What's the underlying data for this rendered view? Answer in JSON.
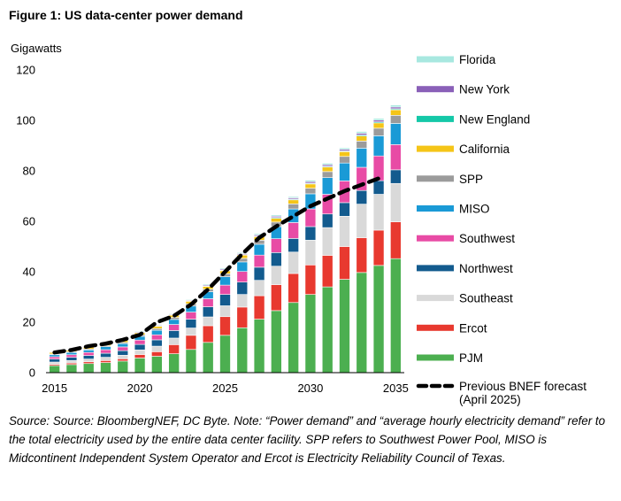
{
  "figure": {
    "title": "Figure 1:  US data-center power demand",
    "source_note": "Source: Source: BloombergNEF, DC Byte. Note: “Power demand” and “average hourly electricity demand” refer to the total electricity used by the entire data center facility. SPP refers to Southwest Power Pool, MISO is Midcontinent Independent System Operator and Ercot is Electricity Reliability Council of Texas."
  },
  "chart_data": {
    "type": "bar",
    "stacked": true,
    "ylabel": "Gigawatts",
    "ylim": [
      0,
      120
    ],
    "y_ticks": [
      0,
      20,
      40,
      60,
      80,
      100,
      120
    ],
    "x_ticks": [
      2015,
      2020,
      2025,
      2030,
      2035
    ],
    "categories": [
      2015,
      2016,
      2017,
      2018,
      2019,
      2020,
      2021,
      2022,
      2023,
      2024,
      2025,
      2026,
      2027,
      2028,
      2029,
      2030,
      2031,
      2032,
      2033,
      2034,
      2035
    ],
    "series": [
      {
        "name": "PJM",
        "color": "#4CAF50",
        "values": [
          2.8,
          3.2,
          3.6,
          4.0,
          4.6,
          5.8,
          6.5,
          7.5,
          9.2,
          12.0,
          14.8,
          17.8,
          21.2,
          24.6,
          27.8,
          31.0,
          34.0,
          37.0,
          39.7,
          42.5,
          45.2
        ]
      },
      {
        "name": "Ercot",
        "color": "#E8392F",
        "values": [
          0.5,
          0.6,
          0.7,
          0.8,
          0.9,
          1.4,
          1.8,
          3.6,
          5.6,
          6.6,
          7.4,
          8.2,
          9.3,
          10.3,
          11.5,
          11.7,
          12.5,
          13.0,
          13.8,
          14.0,
          14.6
        ]
      },
      {
        "name": "Southeast",
        "color": "#D9D9D9",
        "values": [
          0.9,
          1.0,
          1.1,
          1.3,
          1.4,
          1.8,
          2.2,
          2.6,
          2.9,
          3.5,
          4.3,
          5.0,
          6.1,
          7.3,
          8.5,
          9.8,
          11.0,
          12.0,
          13.3,
          14.2,
          15.2
        ]
      },
      {
        "name": "Northwest",
        "color": "#135B8E",
        "values": [
          1.2,
          1.3,
          1.4,
          1.6,
          1.8,
          2.2,
          2.5,
          3.0,
          3.5,
          4.0,
          4.5,
          4.9,
          5.2,
          5.4,
          5.4,
          5.4,
          5.4,
          5.4,
          5.4,
          5.4,
          5.4
        ]
      },
      {
        "name": "Southwest",
        "color": "#E84BA5",
        "values": [
          0.9,
          1.0,
          1.2,
          1.4,
          1.5,
          1.7,
          2.0,
          2.4,
          2.8,
          3.2,
          3.7,
          4.2,
          4.8,
          5.5,
          6.3,
          7.0,
          7.8,
          8.6,
          9.2,
          9.8,
          10.0
        ]
      },
      {
        "name": "MISO",
        "color": "#1A9AD6",
        "values": [
          0.8,
          0.9,
          1.0,
          1.2,
          1.3,
          1.5,
          1.8,
          2.0,
          2.4,
          2.8,
          3.3,
          3.8,
          4.3,
          4.8,
          5.4,
          6.0,
          6.6,
          7.1,
          7.6,
          8.0,
          8.4
        ]
      },
      {
        "name": "SPP",
        "color": "#9B9B9B",
        "values": [
          0.3,
          0.3,
          0.4,
          0.4,
          0.5,
          0.6,
          0.7,
          0.8,
          0.9,
          1.0,
          1.2,
          1.4,
          1.6,
          1.8,
          2.0,
          2.2,
          2.4,
          2.6,
          2.8,
          3.0,
          3.2
        ]
      },
      {
        "name": "California",
        "color": "#F5C518",
        "values": [
          0.6,
          0.6,
          0.7,
          0.7,
          0.8,
          0.8,
          0.9,
          0.9,
          1.0,
          1.1,
          1.2,
          1.3,
          1.4,
          1.5,
          1.6,
          1.7,
          1.8,
          1.9,
          2.0,
          2.1,
          2.2
        ]
      },
      {
        "name": "New England",
        "color": "#14C8A8",
        "values": [
          0.1,
          0.1,
          0.1,
          0.1,
          0.1,
          0.1,
          0.1,
          0.1,
          0.2,
          0.2,
          0.2,
          0.2,
          0.2,
          0.3,
          0.3,
          0.3,
          0.3,
          0.3,
          0.4,
          0.4,
          0.4
        ]
      },
      {
        "name": "New York",
        "color": "#8A60B8",
        "values": [
          0.2,
          0.2,
          0.2,
          0.2,
          0.3,
          0.3,
          0.3,
          0.3,
          0.3,
          0.4,
          0.4,
          0.4,
          0.5,
          0.5,
          0.5,
          0.6,
          0.6,
          0.6,
          0.7,
          0.7,
          0.7
        ]
      },
      {
        "name": "Florida",
        "color": "#A8E8E0",
        "values": [
          0.2,
          0.2,
          0.2,
          0.2,
          0.2,
          0.3,
          0.3,
          0.3,
          0.3,
          0.4,
          0.4,
          0.4,
          0.5,
          0.5,
          0.5,
          0.6,
          0.6,
          0.6,
          0.7,
          0.7,
          0.8
        ]
      }
    ],
    "forecast_line": {
      "name": "Previous BNEF forecast (April 2025)",
      "color": "#000000",
      "x": [
        2015,
        2016,
        2017,
        2018,
        2019,
        2020,
        2021,
        2022,
        2023,
        2024,
        2025,
        2026,
        2027,
        2028,
        2029,
        2030,
        2031,
        2032,
        2033,
        2034
      ],
      "y": [
        8,
        9,
        10.5,
        11.5,
        13,
        15,
        20,
        22.5,
        27,
        33,
        40,
        47,
        53.5,
        58,
        62,
        66,
        69,
        72,
        74.5,
        77
      ]
    },
    "legend_position": "right",
    "grid": false
  }
}
